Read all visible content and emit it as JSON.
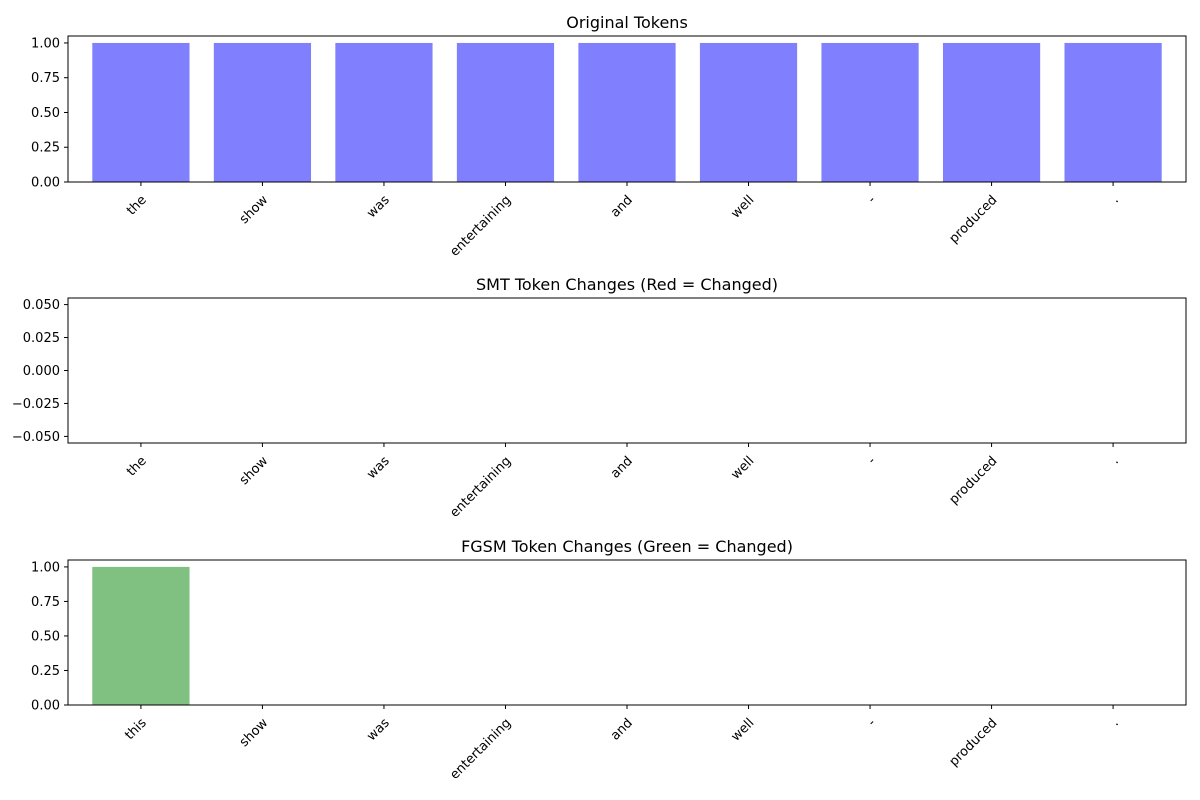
{
  "figure": {
    "background": "#ffffff"
  },
  "chart_data": [
    {
      "type": "bar",
      "title": "Original Tokens",
      "xlabel": "",
      "ylabel": "",
      "categories": [
        "the",
        "show",
        "was",
        "entertaining",
        "and",
        "well",
        "-",
        "produced",
        "."
      ],
      "values": [
        1,
        1,
        1,
        1,
        1,
        1,
        1,
        1,
        1
      ],
      "color": "#8080ff",
      "ylim": [
        0,
        1.05
      ],
      "yticks": [
        0,
        0.25,
        0.5,
        0.75,
        1.0
      ],
      "ytick_labels": [
        "0.00",
        "0.25",
        "0.50",
        "0.75",
        "1.00"
      ],
      "grid": false
    },
    {
      "type": "bar",
      "title": "SMT Token Changes (Red = Changed)",
      "xlabel": "",
      "ylabel": "",
      "categories": [
        "the",
        "show",
        "was",
        "entertaining",
        "and",
        "well",
        "-",
        "produced",
        "."
      ],
      "values": [
        0,
        0,
        0,
        0,
        0,
        0,
        0,
        0,
        0
      ],
      "color": "#ff8080",
      "ylim": [
        -0.055,
        0.055
      ],
      "yticks": [
        -0.05,
        -0.025,
        0,
        0.025,
        0.05
      ],
      "ytick_labels": [
        "−0.050",
        "−0.025",
        "0.000",
        "0.025",
        "0.050"
      ],
      "grid": false
    },
    {
      "type": "bar",
      "title": "FGSM Token Changes (Green = Changed)",
      "xlabel": "",
      "ylabel": "",
      "categories": [
        "this",
        "show",
        "was",
        "entertaining",
        "and",
        "well",
        "-",
        "produced",
        "."
      ],
      "values": [
        1,
        0,
        0,
        0,
        0,
        0,
        0,
        0,
        0
      ],
      "color": "#80c080",
      "ylim": [
        0,
        1.05
      ],
      "yticks": [
        0,
        0.25,
        0.5,
        0.75,
        1.0
      ],
      "ytick_labels": [
        "0.00",
        "0.25",
        "0.50",
        "0.75",
        "1.00"
      ],
      "grid": false
    }
  ]
}
